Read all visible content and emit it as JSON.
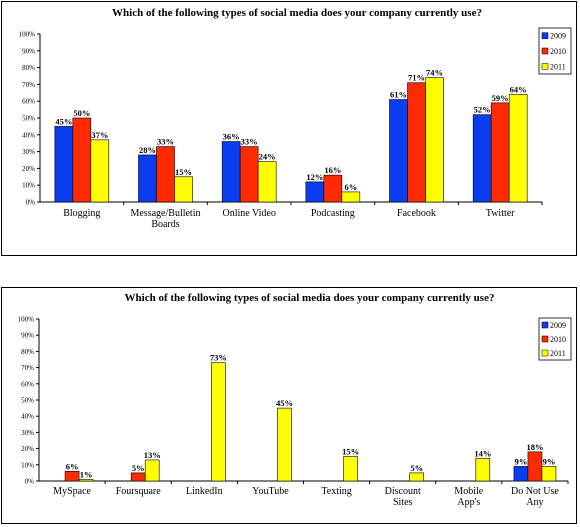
{
  "chart_data": [
    {
      "type": "bar",
      "title": "Which of the following types of social media does your company currently use?",
      "categories": [
        "Blogging",
        "Message/Bulletin Boards",
        "Online Video",
        "Podcasting",
        "Facebook",
        "Twitter"
      ],
      "series": [
        {
          "name": "2009",
          "color": "#0a3cf0",
          "values": [
            45,
            28,
            36,
            12,
            61,
            52
          ]
        },
        {
          "name": "2010",
          "color": "#ff2a00",
          "values": [
            50,
            33,
            33,
            16,
            71,
            59
          ]
        },
        {
          "name": "2011",
          "color": "#ffff00",
          "values": [
            37,
            15,
            24,
            6,
            74,
            64
          ]
        }
      ],
      "yticks": [
        "0%",
        "10%",
        "20%",
        "30%",
        "40%",
        "50%",
        "60%",
        "70%",
        "80%",
        "90%",
        "100%"
      ],
      "ylim": [
        0,
        100
      ],
      "legend": "top-right"
    },
    {
      "type": "bar",
      "title": "Which of the following types of social media does your company currently use?",
      "categories": [
        "MySpace",
        "Foursquare",
        "LinkedIn",
        "YouTube",
        "Texting",
        "Discount Sites",
        "Mobile App's",
        "Do Not Use Any"
      ],
      "series": [
        {
          "name": "2009",
          "color": "#0a3cf0",
          "values": [
            null,
            null,
            null,
            null,
            null,
            null,
            null,
            9
          ]
        },
        {
          "name": "2010",
          "color": "#ff2a00",
          "values": [
            6,
            5,
            null,
            null,
            null,
            null,
            null,
            18
          ]
        },
        {
          "name": "2011",
          "color": "#ffff00",
          "values": [
            1,
            13,
            73,
            45,
            15,
            5,
            14,
            9
          ]
        }
      ],
      "yticks": [
        "0%",
        "10%",
        "20%",
        "30%",
        "40%",
        "50%",
        "60%",
        "70%",
        "80%",
        "90%",
        "100%"
      ],
      "ylim": [
        0,
        100
      ],
      "legend": "top-right"
    }
  ]
}
